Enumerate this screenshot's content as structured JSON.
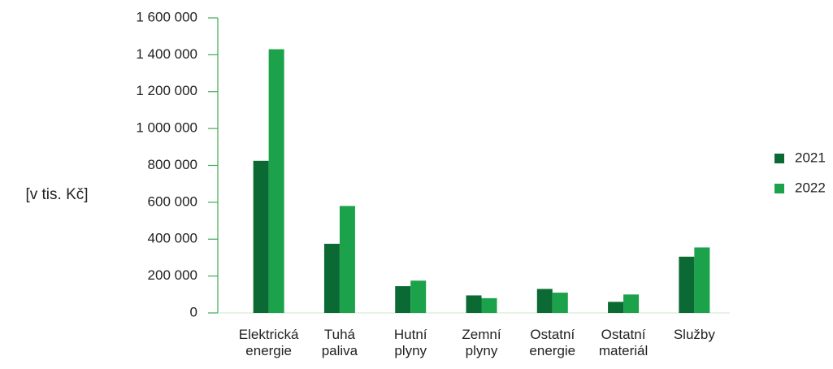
{
  "chart_data": {
    "type": "bar",
    "y_label": "[v tis. Kč]",
    "categories": [
      "Elektrická energie",
      "Tuhá paliva",
      "Hutní plyny",
      "Zemní plyny",
      "Ostatní energie",
      "Ostatní materiál",
      "Služby"
    ],
    "series": [
      {
        "name": "2021",
        "color": "#0b6a34",
        "values": [
          825000,
          375000,
          145000,
          95000,
          130000,
          60000,
          305000
        ]
      },
      {
        "name": "2022",
        "color": "#1ca24a",
        "values": [
          1430000,
          580000,
          175000,
          80000,
          110000,
          100000,
          355000
        ]
      }
    ],
    "ylim": [
      0,
      1600000
    ],
    "yticks": [
      0,
      {
        "value": 200000,
        "label": "200 000"
      },
      {
        "value": 400000,
        "label": "400 000"
      },
      {
        "value": 600000,
        "label": "600 000"
      },
      {
        "value": 800000,
        "label": "800 000"
      },
      {
        "value": 1000000,
        "label": "1 000 000"
      },
      {
        "value": 1200000,
        "label": "1 200 000"
      },
      {
        "value": 1400000,
        "label": "1 400 000"
      },
      {
        "value": 1600000,
        "label": "1 600 000"
      }
    ],
    "legend": "right"
  }
}
